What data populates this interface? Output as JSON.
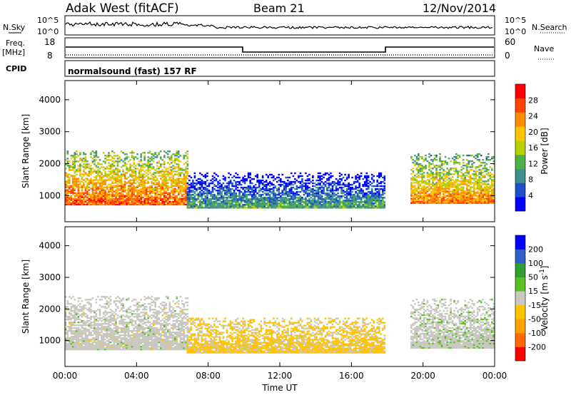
{
  "header": {
    "radar": "Adak West (fitACF)",
    "beam": "Beam 21",
    "date": "12/Nov/2014"
  },
  "noise_panel": {
    "left_label": "N.Sky",
    "right_label": "N.Search",
    "left_ticks": [
      "10^5",
      "10^0"
    ],
    "right_ticks": [
      "10^5",
      "10^0"
    ]
  },
  "freq_panel": {
    "left_label": "Freq.",
    "left_unit": "[MHz]",
    "right_label": "Nave",
    "left_ticks": [
      "18",
      "8"
    ],
    "right_ticks": [
      "60",
      "0"
    ]
  },
  "cpid_panel": {
    "label": "CPID",
    "text": "normalsound (fast) 157 RF"
  },
  "colors": {
    "power_scale": [
      "#0000ff",
      "#1e4fc8",
      "#3f8f8f",
      "#4caf4c",
      "#b8d000",
      "#ffc400",
      "#ff8c00",
      "#ff4400",
      "#ff0000"
    ],
    "velocity_scale": [
      "#ff0000",
      "#ff6a00",
      "#ff9f00",
      "#ffc400",
      "#c8c8c0",
      "#58c020",
      "#2f9f2f",
      "#3060c8",
      "#0000ff"
    ]
  },
  "chart_data": [
    {
      "type": "heatmap",
      "title": "Power",
      "ylabel": "Slant Range [km]",
      "xlabel": "",
      "y_ticks": [
        "4000",
        "3000",
        "2000",
        "1000"
      ],
      "ylim": [
        180,
        4600
      ],
      "xlim": [
        0,
        24
      ],
      "colorbar": {
        "label": "Power [dB]",
        "ticks": [
          "28",
          "24",
          "20",
          "16",
          "12",
          "8",
          "4"
        ],
        "range": [
          0,
          32
        ]
      },
      "regions": [
        {
          "t0": 0.0,
          "t1": 6.8,
          "r0": 700,
          "r1": 2400,
          "level": 26
        },
        {
          "t0": 6.8,
          "t1": 17.8,
          "r0": 600,
          "r1": 1700,
          "level": 12
        },
        {
          "t0": 19.3,
          "t1": 24.0,
          "r0": 750,
          "r1": 2300,
          "level": 24
        }
      ]
    },
    {
      "type": "heatmap",
      "title": "Velocity",
      "ylabel": "Slant Range [km]",
      "xlabel": "Time UT",
      "x_ticks": [
        "00:00",
        "04:00",
        "08:00",
        "12:00",
        "16:00",
        "20:00",
        "00:00"
      ],
      "y_ticks": [
        "4000",
        "3000",
        "2000",
        "1000"
      ],
      "ylim": [
        180,
        4600
      ],
      "xlim": [
        0,
        24
      ],
      "colorbar": {
        "label": "Velocity [m s^-1]",
        "ticks": [
          "200",
          "100",
          "50",
          "15",
          "-15",
          "-50",
          "-100",
          "-200"
        ],
        "range": [
          -250,
          250
        ]
      },
      "regions": [
        {
          "t0": 0.0,
          "t1": 6.8,
          "r0": 700,
          "r1": 2400,
          "level": 0
        },
        {
          "t0": 6.8,
          "t1": 17.8,
          "r0": 600,
          "r1": 1700,
          "level": -40
        },
        {
          "t0": 19.3,
          "t1": 24.0,
          "r0": 750,
          "r1": 2300,
          "level": 5
        }
      ]
    }
  ]
}
